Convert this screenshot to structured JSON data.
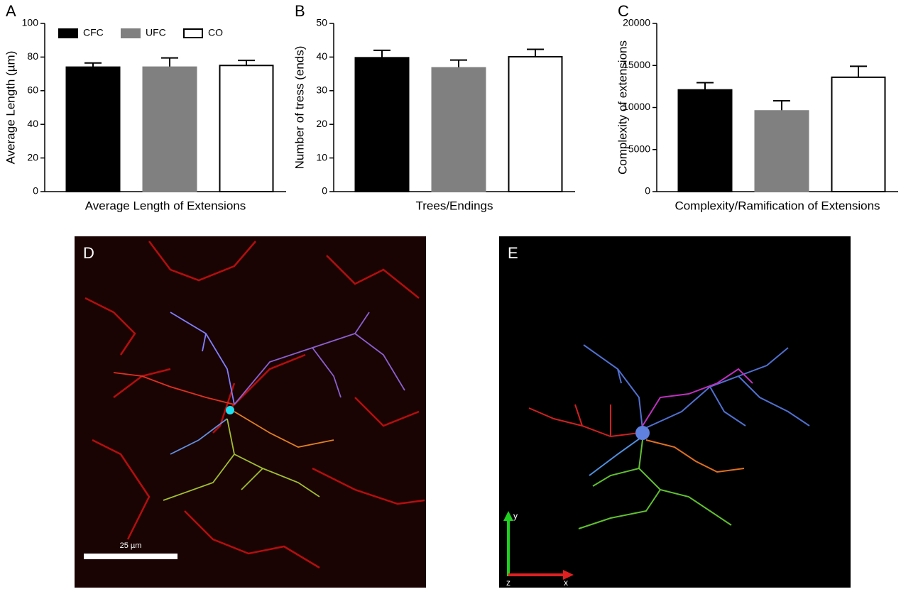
{
  "chart_data": [
    {
      "type": "bar",
      "panel": "A",
      "ylabel": "Average Length (µm)",
      "xlabel": "Average Length of Extensions",
      "values": [
        74,
        74,
        75
      ],
      "errors": [
        2.5,
        5.5,
        3
      ],
      "colors": [
        "#000000",
        "#808080",
        "#ffffff"
      ],
      "ylim": [
        0,
        100
      ],
      "yticks": [
        0,
        20,
        40,
        60,
        80,
        100
      ],
      "legend": {
        "labels": [
          "CFC",
          "UFC",
          "CO"
        ],
        "loc": "upper left"
      }
    },
    {
      "type": "bar",
      "panel": "B",
      "ylabel": "Number of tress (ends)",
      "xlabel": "Trees/Endings",
      "values": [
        39.8,
        36.8,
        40.1
      ],
      "errors": [
        2.2,
        2.3,
        2.2
      ],
      "colors": [
        "#000000",
        "#808080",
        "#ffffff"
      ],
      "ylim": [
        0,
        50
      ],
      "yticks": [
        0,
        10,
        20,
        30,
        40,
        50
      ]
    },
    {
      "type": "bar",
      "panel": "C",
      "ylabel": "Complexity of  extensions",
      "xlabel": "Complexity/Ramification of Extensions",
      "values": [
        12100,
        9600,
        13600
      ],
      "errors": [
        850,
        1200,
        1300
      ],
      "colors": [
        "#000000",
        "#808080",
        "#ffffff"
      ],
      "ylim": [
        0,
        20000
      ],
      "yticks": [
        0,
        5000,
        10000,
        15000,
        20000
      ]
    }
  ],
  "panels": {
    "D": {
      "label": "D",
      "scale_bar": "25 µm"
    },
    "E": {
      "label": "E",
      "axes": [
        "y",
        "z",
        "x"
      ]
    }
  }
}
